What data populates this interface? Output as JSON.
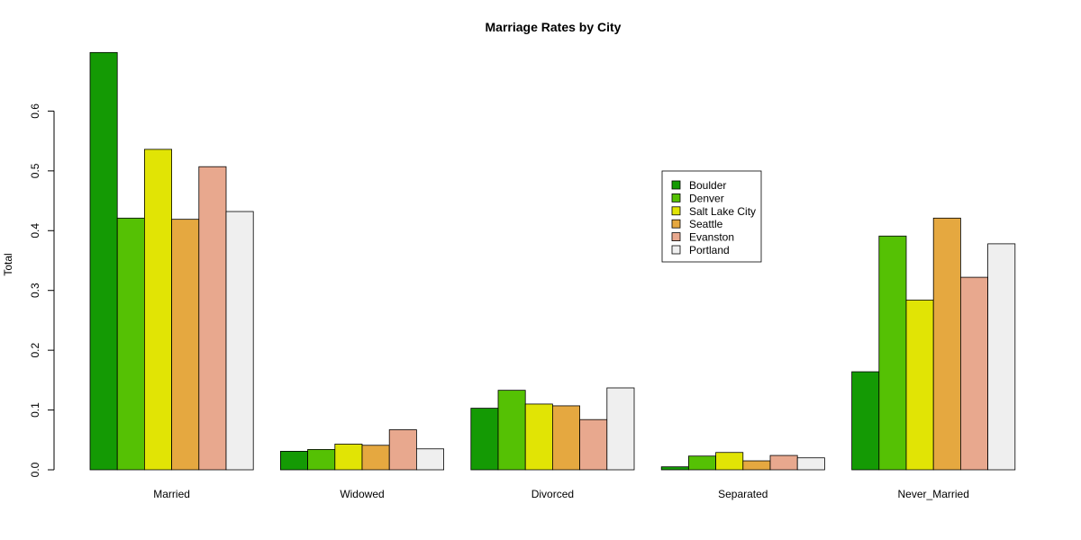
{
  "chart_data": {
    "type": "bar",
    "title": "Marriage Rates by City",
    "xlabel": "",
    "ylabel": "Total",
    "ylim": [
      0,
      0.7
    ],
    "yticks": [
      "0.0",
      "0.1",
      "0.2",
      "0.3",
      "0.4",
      "0.5",
      "0.6"
    ],
    "grid": false,
    "legend_position": "center-right",
    "categories": [
      "Married",
      "Widowed",
      "Divorced",
      "Separated",
      "Never_Married"
    ],
    "series": [
      {
        "name": "Boulder",
        "color": "#149a04",
        "values": [
          0.698,
          0.031,
          0.103,
          0.005,
          0.164
        ]
      },
      {
        "name": "Denver",
        "color": "#55c104",
        "values": [
          0.421,
          0.034,
          0.133,
          0.023,
          0.391
        ]
      },
      {
        "name": "Salt Lake City",
        "color": "#e1e405",
        "values": [
          0.536,
          0.043,
          0.11,
          0.029,
          0.284
        ]
      },
      {
        "name": "Seattle",
        "color": "#e5a840",
        "values": [
          0.419,
          0.041,
          0.107,
          0.015,
          0.421
        ]
      },
      {
        "name": "Evanston",
        "color": "#e8a88e",
        "values": [
          0.507,
          0.067,
          0.084,
          0.024,
          0.322
        ]
      },
      {
        "name": "Portland",
        "color": "#efefef",
        "values": [
          0.432,
          0.035,
          0.137,
          0.02,
          0.378
        ]
      }
    ]
  }
}
